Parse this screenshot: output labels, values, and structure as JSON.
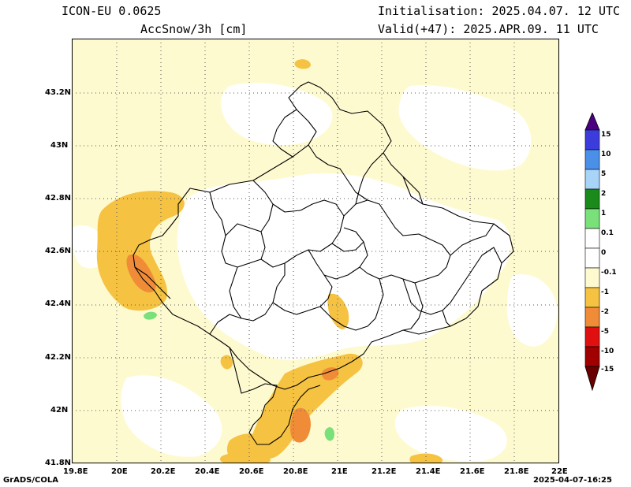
{
  "header": {
    "model": "ICON-EU 0.0625",
    "variable": "AccSnow/3h [cm]",
    "initialisation": "Initialisation: 2025.04.07. 12 UTC",
    "valid": "Valid(+47): 2025.APR.09. 11 UTC"
  },
  "axes": {
    "x_ticks": [
      "19.8E",
      "20E",
      "20.2E",
      "20.4E",
      "20.6E",
      "20.8E",
      "21E",
      "21.2E",
      "21.4E",
      "21.6E",
      "21.8E",
      "22E"
    ],
    "y_ticks": [
      "41.8N",
      "42N",
      "42.2N",
      "42.4N",
      "42.6N",
      "42.8N",
      "43N",
      "43.2N"
    ],
    "lon_range": [
      19.8,
      22.0
    ],
    "lat_range": [
      41.8,
      43.4
    ]
  },
  "colorbar": {
    "labels": [
      "15",
      "10",
      "5",
      "2",
      "1",
      "0.1",
      "0",
      "-0.1",
      "-1",
      "-2",
      "-5",
      "-10",
      "-15"
    ],
    "colors": [
      "#4b0082",
      "#3c3cdc",
      "#4a90e8",
      "#a8d4f8",
      "#1a8a1a",
      "#7ae07a",
      "#ffffff",
      "#fefad0",
      "#f5c242",
      "#f08c38",
      "#e01010",
      "#a00000"
    ]
  },
  "palette": {
    "white": "#ffffff",
    "pale_yellow": "#fefad0",
    "yellow": "#f5c242",
    "orange": "#f08c38",
    "green": "#7ae07a"
  },
  "footer": {
    "left": "GrADS/COLA",
    "right": "2025-04-07-16:25"
  }
}
